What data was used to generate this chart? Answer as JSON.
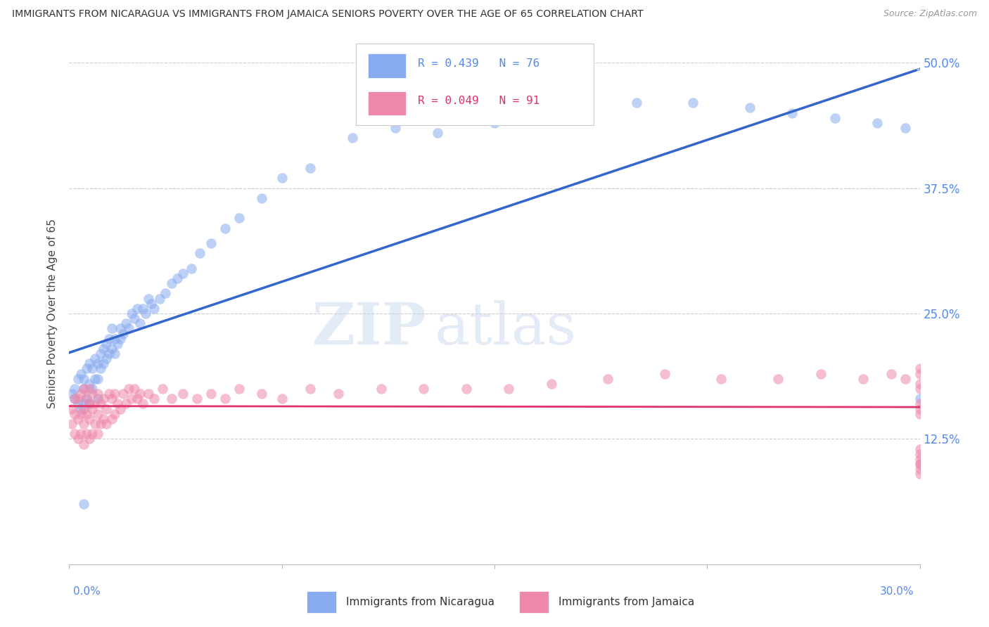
{
  "title": "IMMIGRANTS FROM NICARAGUA VS IMMIGRANTS FROM JAMAICA SENIORS POVERTY OVER THE AGE OF 65 CORRELATION CHART",
  "source": "Source: ZipAtlas.com",
  "ylabel": "Seniors Poverty Over the Age of 65",
  "legend_line1": "R = 0.439   N = 76",
  "legend_line2": "R = 0.049   N = 91",
  "watermark_zip": "ZIP",
  "watermark_atlas": "atlas",
  "color_nicaragua": "#88aaee",
  "color_jamaica": "#ee88aa",
  "color_nic_line": "#3366cc",
  "color_jam_line": "#dd3366",
  "color_nic_dash": "#aabbdd",
  "color_right_labels": "#5588ee",
  "color_bottom_labels": "#5588ee",
  "color_grid": "#cccccc",
  "color_title": "#333333",
  "color_source": "#999999",
  "xmin": 0.0,
  "xmax": 0.3,
  "ymin": 0.0,
  "ymax": 0.5,
  "yticks": [
    0.0,
    0.125,
    0.25,
    0.375,
    0.5
  ],
  "yticklabels": [
    "",
    "12.5%",
    "25.0%",
    "37.5%",
    "50.0%"
  ],
  "xtick_labels_show": [
    "0.0%",
    "30.0%"
  ],
  "nicaragua_x": [
    0.001,
    0.002,
    0.002,
    0.003,
    0.003,
    0.004,
    0.004,
    0.005,
    0.005,
    0.005,
    0.006,
    0.006,
    0.007,
    0.007,
    0.007,
    0.008,
    0.008,
    0.009,
    0.009,
    0.01,
    0.01,
    0.01,
    0.011,
    0.011,
    0.012,
    0.012,
    0.013,
    0.013,
    0.014,
    0.014,
    0.015,
    0.015,
    0.016,
    0.016,
    0.017,
    0.018,
    0.018,
    0.019,
    0.02,
    0.021,
    0.022,
    0.023,
    0.024,
    0.025,
    0.026,
    0.027,
    0.028,
    0.029,
    0.03,
    0.032,
    0.034,
    0.036,
    0.038,
    0.04,
    0.043,
    0.046,
    0.05,
    0.055,
    0.06,
    0.068,
    0.075,
    0.085,
    0.1,
    0.115,
    0.13,
    0.15,
    0.175,
    0.2,
    0.22,
    0.24,
    0.255,
    0.27,
    0.285,
    0.295,
    0.3,
    0.005
  ],
  "nicaragua_y": [
    0.17,
    0.165,
    0.175,
    0.16,
    0.185,
    0.155,
    0.19,
    0.16,
    0.175,
    0.185,
    0.165,
    0.195,
    0.16,
    0.18,
    0.2,
    0.175,
    0.195,
    0.185,
    0.205,
    0.165,
    0.185,
    0.2,
    0.195,
    0.21,
    0.2,
    0.215,
    0.205,
    0.22,
    0.21,
    0.225,
    0.215,
    0.235,
    0.21,
    0.225,
    0.22,
    0.225,
    0.235,
    0.23,
    0.24,
    0.235,
    0.25,
    0.245,
    0.255,
    0.24,
    0.255,
    0.25,
    0.265,
    0.26,
    0.255,
    0.265,
    0.27,
    0.28,
    0.285,
    0.29,
    0.295,
    0.31,
    0.32,
    0.335,
    0.345,
    0.365,
    0.385,
    0.395,
    0.425,
    0.435,
    0.43,
    0.44,
    0.45,
    0.46,
    0.46,
    0.455,
    0.45,
    0.445,
    0.44,
    0.435,
    0.165,
    0.06
  ],
  "jamaica_x": [
    0.001,
    0.001,
    0.002,
    0.002,
    0.002,
    0.003,
    0.003,
    0.003,
    0.004,
    0.004,
    0.004,
    0.005,
    0.005,
    0.005,
    0.005,
    0.006,
    0.006,
    0.006,
    0.007,
    0.007,
    0.007,
    0.007,
    0.008,
    0.008,
    0.008,
    0.009,
    0.009,
    0.01,
    0.01,
    0.01,
    0.011,
    0.011,
    0.012,
    0.012,
    0.013,
    0.013,
    0.014,
    0.015,
    0.015,
    0.016,
    0.016,
    0.017,
    0.018,
    0.019,
    0.02,
    0.021,
    0.022,
    0.023,
    0.024,
    0.025,
    0.026,
    0.028,
    0.03,
    0.033,
    0.036,
    0.04,
    0.045,
    0.05,
    0.055,
    0.06,
    0.068,
    0.075,
    0.085,
    0.095,
    0.11,
    0.125,
    0.14,
    0.155,
    0.17,
    0.19,
    0.21,
    0.23,
    0.25,
    0.265,
    0.28,
    0.29,
    0.295,
    0.3,
    0.3,
    0.3,
    0.3,
    0.3,
    0.3,
    0.3,
    0.3,
    0.3,
    0.3,
    0.3,
    0.3,
    0.3,
    0.3
  ],
  "jamaica_y": [
    0.155,
    0.14,
    0.13,
    0.15,
    0.165,
    0.125,
    0.145,
    0.165,
    0.13,
    0.15,
    0.17,
    0.12,
    0.14,
    0.155,
    0.175,
    0.13,
    0.15,
    0.165,
    0.125,
    0.145,
    0.16,
    0.175,
    0.13,
    0.155,
    0.17,
    0.14,
    0.16,
    0.13,
    0.15,
    0.17,
    0.14,
    0.16,
    0.145,
    0.165,
    0.14,
    0.155,
    0.17,
    0.145,
    0.165,
    0.15,
    0.17,
    0.16,
    0.155,
    0.17,
    0.16,
    0.175,
    0.165,
    0.175,
    0.165,
    0.17,
    0.16,
    0.17,
    0.165,
    0.175,
    0.165,
    0.17,
    0.165,
    0.17,
    0.165,
    0.175,
    0.17,
    0.165,
    0.175,
    0.17,
    0.175,
    0.175,
    0.175,
    0.175,
    0.18,
    0.185,
    0.19,
    0.185,
    0.185,
    0.19,
    0.185,
    0.19,
    0.185,
    0.19,
    0.195,
    0.18,
    0.175,
    0.16,
    0.155,
    0.15,
    0.095,
    0.1,
    0.09,
    0.105,
    0.1,
    0.115,
    0.11
  ],
  "bg_color": "#ffffff"
}
